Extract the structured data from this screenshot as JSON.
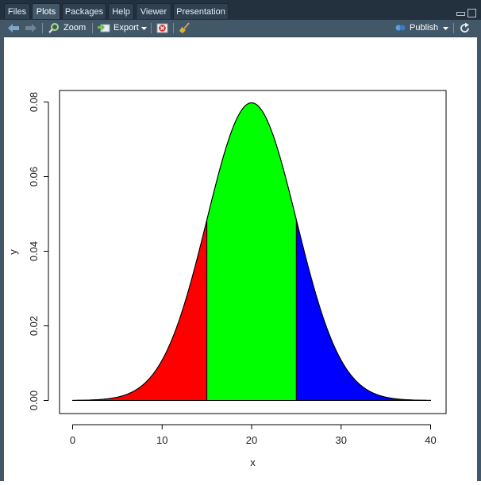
{
  "tabs": [
    {
      "label": "Files",
      "active": false
    },
    {
      "label": "Plots",
      "active": true
    },
    {
      "label": "Packages",
      "active": false
    },
    {
      "label": "Help",
      "active": false
    },
    {
      "label": "Viewer",
      "active": false
    },
    {
      "label": "Presentation",
      "active": false
    }
  ],
  "toolbar": {
    "zoom_label": "Zoom",
    "export_label": "Export",
    "publish_label": "Publish"
  },
  "colors": {
    "chrome": "#425868",
    "tabbar": "#22313d",
    "left_tail": "#ff0000",
    "middle": "#00ff00",
    "right_tail": "#0000ff"
  },
  "icons": [
    "back-arrow-icon",
    "forward-arrow-icon",
    "zoom-icon",
    "export-icon",
    "remove-plot-icon",
    "broom-icon",
    "publish-icon",
    "refresh-icon"
  ],
  "chart_data": {
    "type": "area",
    "title": "",
    "xlabel": "x",
    "ylabel": "y",
    "xlim": [
      0,
      40
    ],
    "ylim": [
      0,
      0.08
    ],
    "xticks": [
      0,
      10,
      20,
      30,
      40
    ],
    "xtick_labels": [
      "0",
      "10",
      "20",
      "30",
      "40"
    ],
    "yticks": [
      0,
      0.02,
      0.04,
      0.06,
      0.08
    ],
    "ytick_labels": [
      "0.00",
      "0.02",
      "0.04",
      "0.06",
      "0.08"
    ],
    "grid": false,
    "legend": "none",
    "curve": {
      "x": [
        0,
        2,
        4,
        6,
        8,
        10,
        12,
        14,
        15,
        16,
        18,
        20,
        22,
        24,
        25,
        26,
        28,
        30,
        32,
        34,
        36,
        38,
        40
      ],
      "y": [
        0.0,
        0.0001,
        0.0004,
        0.0014,
        0.0043,
        0.0108,
        0.022,
        0.0399,
        0.0484,
        0.0583,
        0.0738,
        0.0798,
        0.0738,
        0.0583,
        0.0484,
        0.0399,
        0.022,
        0.0108,
        0.0043,
        0.0014,
        0.0004,
        0.0001,
        0.0
      ]
    },
    "regions": [
      {
        "from": 0,
        "to": 15,
        "color": "#ff0000"
      },
      {
        "from": 15,
        "to": 25,
        "color": "#00ff00"
      },
      {
        "from": 25,
        "to": 40,
        "color": "#0000ff"
      }
    ]
  }
}
